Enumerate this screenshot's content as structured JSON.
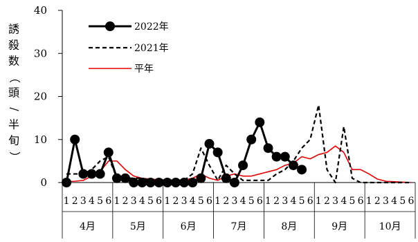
{
  "chart_data": {
    "type": "line",
    "ylabel": "誘殺数（頭/半旬）",
    "ylim": [
      0,
      40
    ],
    "yticks": [
      0,
      10,
      20,
      30,
      40
    ],
    "months": [
      "4月",
      "5月",
      "6月",
      "7月",
      "8月",
      "9月",
      "10月"
    ],
    "pentad_labels": [
      "1",
      "2",
      "3",
      "4",
      "5",
      "6"
    ],
    "legend_position": "top-left",
    "grid": false,
    "series": [
      {
        "name": "2022年",
        "style": "solid-marker",
        "color": "#000000",
        "values": [
          0,
          10,
          2,
          2,
          2,
          7,
          1,
          1,
          0,
          0,
          0,
          0,
          0,
          0,
          0,
          0,
          1,
          9,
          7,
          1,
          0,
          4,
          10,
          14,
          8,
          6,
          6,
          4,
          3
        ]
      },
      {
        "name": "2021年",
        "style": "dashed",
        "color": "#000000",
        "values": [
          2,
          2,
          2,
          3,
          5,
          6,
          1,
          1,
          1,
          1,
          0.5,
          0.5,
          0.5,
          0.5,
          0.5,
          2,
          8,
          4,
          0.5,
          4,
          2,
          0.5,
          0.5,
          0.5,
          0.5,
          2,
          3,
          5,
          8,
          10,
          18,
          3,
          0,
          13,
          1,
          0,
          0,
          0,
          0,
          0,
          0,
          0
        ]
      },
      {
        "name": "平年",
        "style": "solid",
        "color": "#e60000",
        "values": [
          0.2,
          0.3,
          0.5,
          1.5,
          2.5,
          5,
          5,
          3,
          1.5,
          1,
          0.8,
          0.7,
          0.6,
          0.6,
          0.6,
          1,
          2,
          1,
          0.5,
          1.5,
          2,
          1.5,
          1.5,
          2,
          2.5,
          3,
          4,
          4.5,
          6,
          5.5,
          6.5,
          7,
          8.5,
          7,
          3,
          3,
          2,
          0.8,
          0.3,
          0.2,
          0.1,
          0
        ]
      }
    ]
  }
}
